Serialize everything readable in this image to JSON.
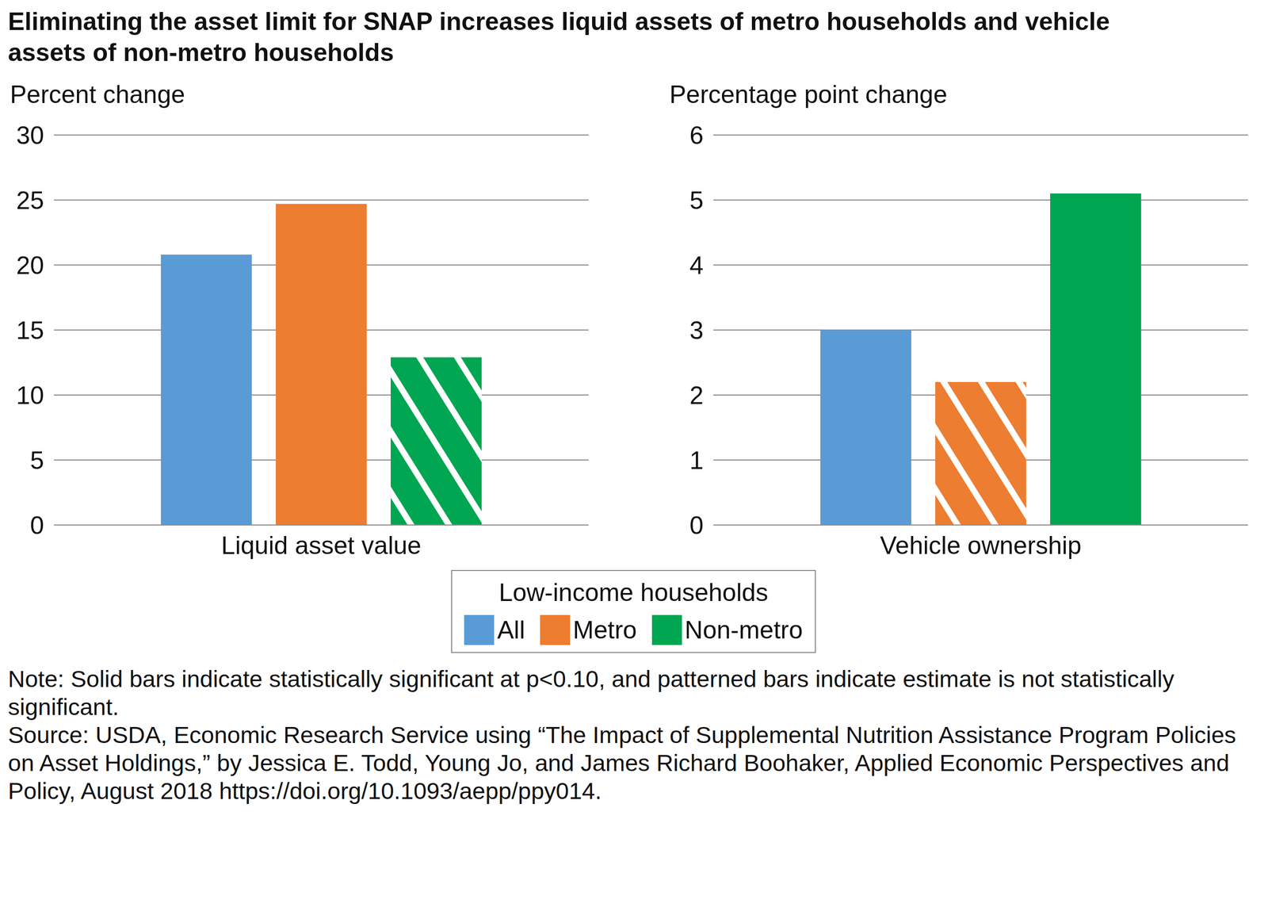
{
  "title": "Eliminating the asset limit for SNAP increases liquid assets of metro households and vehicle assets of non-metro households",
  "legend_title": "Low-income households",
  "note": "Note: Solid bars indicate statistically significant at p<0.10, and patterned bars indicate estimate is not statistically significant.",
  "source": "Source: USDA, Economic Research Service using “The Impact of Supplemental Nutrition Assistance Program Policies on Asset Holdings,” by Jessica E. Todd, Young Jo, and James Richard Boohaker, Applied Economic Perspectives and Policy, August 2018 https://doi.org/10.1093/aepp/ppy014.",
  "chart_data": [
    {
      "type": "bar",
      "y_label": "Percent change",
      "categories": [
        "Liquid asset value"
      ],
      "series": [
        {
          "name": "All",
          "color": "#5b9bd5",
          "values": [
            20.8
          ],
          "significant": true
        },
        {
          "name": "Metro",
          "color": "#ed7d31",
          "values": [
            24.7
          ],
          "significant": true
        },
        {
          "name": "Non-metro",
          "color": "#00a651",
          "values": [
            12.9
          ],
          "significant": false
        }
      ],
      "ylim": [
        0,
        30
      ],
      "yticks": [
        0,
        5,
        10,
        15,
        20,
        25,
        30
      ],
      "grid": true
    },
    {
      "type": "bar",
      "y_label": "Percentage point change",
      "categories": [
        "Vehicle ownership"
      ],
      "series": [
        {
          "name": "All",
          "color": "#5b9bd5",
          "values": [
            3.0
          ],
          "significant": true
        },
        {
          "name": "Metro",
          "color": "#ed7d31",
          "values": [
            2.2
          ],
          "significant": false
        },
        {
          "name": "Non-metro",
          "color": "#00a651",
          "values": [
            5.1
          ],
          "significant": true
        }
      ],
      "ylim": [
        0,
        6
      ],
      "yticks": [
        0,
        1,
        2,
        3,
        4,
        5,
        6
      ],
      "grid": true
    }
  ]
}
